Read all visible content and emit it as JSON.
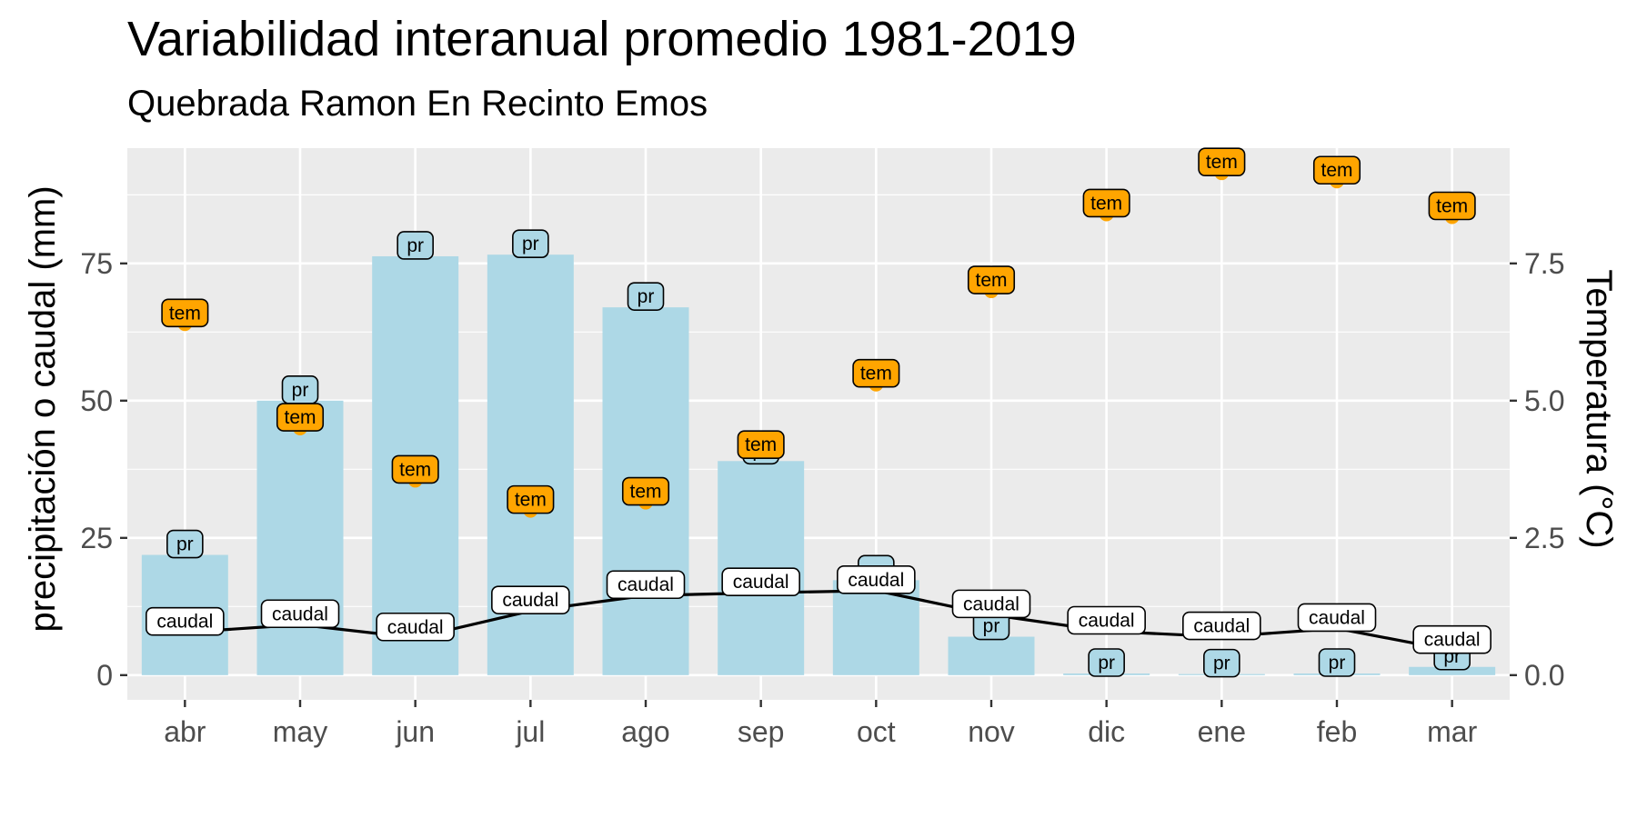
{
  "title": "Variabilidad interanual promedio 1981-2019",
  "subtitle": "Quebrada Ramon En Recinto Emos",
  "chart_data": {
    "type": "bar",
    "categories": [
      "abr",
      "may",
      "jun",
      "jul",
      "ago",
      "sep",
      "oct",
      "nov",
      "dic",
      "ene",
      "feb",
      "mar"
    ],
    "ylabel_left": "precipitación o caudal (mm)",
    "ylabel_right": "Temperatura (°C)",
    "ylim_left": [
      -4.5,
      96
    ],
    "ylim_right": [
      -0.45,
      9.6
    ],
    "yticks_left": [
      0,
      25,
      50,
      75
    ],
    "yticks_right": [
      "0.0",
      "2.5",
      "5.0",
      "7.5"
    ],
    "yticks_right_values": [
      0,
      2.5,
      5,
      7.5
    ],
    "series": [
      {
        "name": "pr",
        "type": "bar",
        "axis": "left",
        "color": "#add8e6",
        "values": [
          21.9,
          50.0,
          76.3,
          76.6,
          67.0,
          39.0,
          17.3,
          7.0,
          0.3,
          0.2,
          0.3,
          1.5
        ]
      },
      {
        "name": "caudal",
        "type": "line",
        "axis": "left",
        "color": "#000000",
        "values": [
          7.8,
          9.2,
          6.8,
          11.7,
          14.5,
          15.0,
          15.4,
          11.0,
          8.0,
          7.0,
          8.5,
          4.5
        ]
      },
      {
        "name": "tem",
        "type": "scatter",
        "axis": "right",
        "color": "#ffa500",
        "values": [
          6.4,
          4.5,
          3.55,
          3.0,
          3.15,
          4.0,
          5.3,
          7.0,
          8.4,
          9.15,
          9.0,
          8.35
        ]
      }
    ],
    "grid": true
  },
  "colors": {
    "panel": "#ebebeb",
    "grid": "#ffffff",
    "bar": "#add8e6",
    "point": "#ffa500",
    "line": "#000000"
  }
}
